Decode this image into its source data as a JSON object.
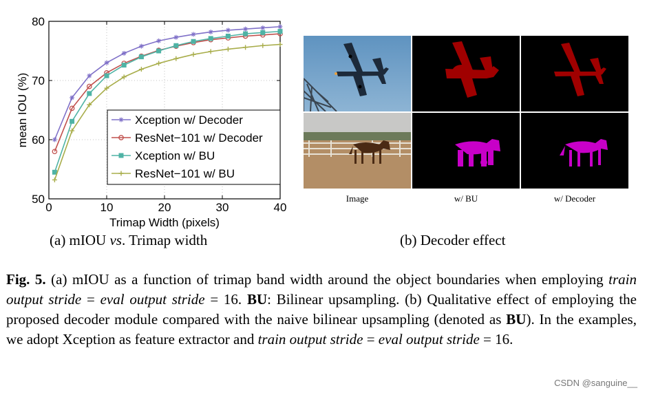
{
  "chart_data": {
    "type": "line",
    "xlabel": "Trimap Width (pixels)",
    "ylabel": "mean IOU (%)",
    "xlim": [
      0,
      40
    ],
    "ylim": [
      50,
      80
    ],
    "xticks": [
      0,
      10,
      20,
      30,
      40
    ],
    "yticks": [
      50,
      60,
      70,
      80
    ],
    "grid": true,
    "legend_position": "lower-right",
    "x": [
      1,
      4,
      7,
      10,
      13,
      16,
      19,
      22,
      25,
      28,
      31,
      34,
      37,
      40
    ],
    "series": [
      {
        "name": "Xception w/ Decoder",
        "color": "#7f70c8",
        "marker": "star",
        "values": [
          60.0,
          67.1,
          70.8,
          73.0,
          74.6,
          75.8,
          76.7,
          77.3,
          77.8,
          78.2,
          78.5,
          78.7,
          78.9,
          79.1
        ]
      },
      {
        "name": "ResNet−101 w/ Decoder",
        "color": "#c0504d",
        "marker": "circle",
        "values": [
          58.0,
          65.3,
          69.0,
          71.3,
          72.9,
          74.1,
          75.1,
          75.8,
          76.4,
          76.9,
          77.2,
          77.5,
          77.7,
          77.9
        ]
      },
      {
        "name": "Xception w/ BU",
        "color": "#4fb3a5",
        "marker": "square",
        "values": [
          54.5,
          63.1,
          67.8,
          70.8,
          72.6,
          74.0,
          75.0,
          75.9,
          76.6,
          77.1,
          77.5,
          77.9,
          78.1,
          78.3
        ]
      },
      {
        "name": "ResNet−101 w/ BU",
        "color": "#a8ad4a",
        "marker": "plus",
        "values": [
          53.2,
          61.5,
          65.9,
          68.7,
          70.6,
          71.9,
          72.9,
          73.7,
          74.4,
          74.9,
          75.3,
          75.6,
          75.9,
          76.1
        ]
      }
    ]
  },
  "subcaptions": {
    "a_prefix": "(a) mIOU ",
    "a_vs": "vs",
    "a_suffix": ". Trimap width",
    "b": "(b) Decoder effect"
  },
  "image_labels": {
    "image": "Image",
    "bu": "w/ BU",
    "decoder": "w/ Decoder"
  },
  "colors": {
    "airplane_mask": "#a00000",
    "horse_mask": "#c800c8",
    "sky": "#6d9cc4"
  },
  "caption": {
    "fig_label": "Fig. 5.",
    "p1": " (a) mIOU as a function of trimap band width around the object boundaries when employing ",
    "i1": "train output stride",
    "p2": " = ",
    "i2": "eval output stride",
    "p3": " = 16. ",
    "b1": "BU",
    "p4": ": Bilinear upsampling. (b) Qualitative effect of employing the proposed decoder module compared with the naive bilinear upsampling (denoted as ",
    "b2": "BU",
    "p5": "). In the examples, we adopt Xception as feature extractor and ",
    "i3": "train output stride",
    "p6": " = ",
    "i4": "eval output stride",
    "p7": " = 16."
  },
  "watermark": "CSDN @sanguine__"
}
